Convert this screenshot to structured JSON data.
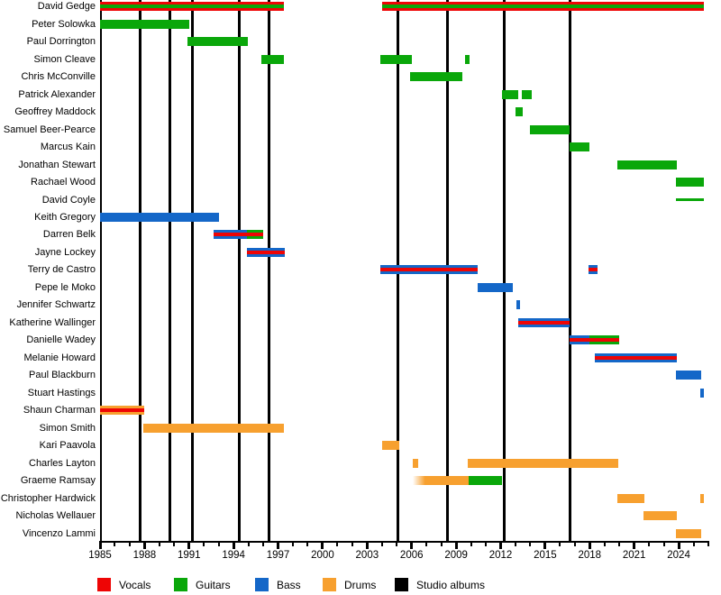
{
  "chart_data": {
    "type": "timeline-gantt",
    "description": "Band members timeline with instrument roles and studio album release markers",
    "x_axis": {
      "min": 1985,
      "max": 2026,
      "major_tick_labels": [
        "1985",
        "1988",
        "1991",
        "1994",
        "1997",
        "2000",
        "2003",
        "2006",
        "2009",
        "2012",
        "2015",
        "2018",
        "2021",
        "2024"
      ],
      "major_ticks": [
        1985,
        1988,
        1991,
        1994,
        1997,
        2000,
        2003,
        2006,
        2009,
        2012,
        2015,
        2018,
        2021,
        2024
      ],
      "minor_tick_interval": 1
    },
    "colors": {
      "vocals": "#ee0505",
      "guitars": "#0aa70a",
      "bass": "#1467c8",
      "drums": "#f7a02f",
      "studio_albums": "#000000"
    },
    "roles": {
      "guitars": {
        "color": "#0aa70a",
        "stripe": null,
        "height": 10
      },
      "guitars_touring": {
        "color": "#0aa70a",
        "stripe": null,
        "height": 3
      },
      "bass": {
        "color": "#1467c8",
        "stripe": null,
        "height": 10
      },
      "drums": {
        "color": "#f7a02f",
        "stripe": null,
        "height": 10
      },
      "drums_fadein": {
        "color": "#f7a02f",
        "stripe": null,
        "height": 10,
        "fade_in": true
      },
      "vocals_guitars": {
        "color": "#ee0505",
        "stripe": "#0aa70a",
        "height": 10
      },
      "bass_vocals": {
        "color": "#1467c8",
        "stripe": "#ee0505",
        "height": 10
      },
      "guitars_vocals": {
        "color": "#0aa70a",
        "stripe": "#ee0505",
        "height": 10
      },
      "drums_vocals": {
        "color": "#f7a02f",
        "stripe": "#ee0505",
        "height": 10
      }
    },
    "members": [
      {
        "name": "David Gedge",
        "segments": [
          {
            "role": "vocals_guitars",
            "start": 1985,
            "end": 1997.4
          },
          {
            "role": "vocals_guitars",
            "start": 2004.0,
            "end": 2025.7
          }
        ]
      },
      {
        "name": "Peter Solowka",
        "segments": [
          {
            "role": "guitars",
            "start": 1985,
            "end": 1991.0
          }
        ]
      },
      {
        "name": "Paul Dorrington",
        "segments": [
          {
            "role": "guitars",
            "start": 1990.9,
            "end": 1994.95
          }
        ]
      },
      {
        "name": "Simon Cleave",
        "segments": [
          {
            "role": "guitars",
            "start": 1995.9,
            "end": 1997.4
          },
          {
            "role": "guitars",
            "start": 2003.9,
            "end": 2006.0
          },
          {
            "role": "guitars",
            "start": 2009.6,
            "end": 2009.9
          }
        ]
      },
      {
        "name": "Chris McConville",
        "segments": [
          {
            "role": "guitars",
            "start": 2005.9,
            "end": 2009.4
          }
        ]
      },
      {
        "name": "Patrick Alexander",
        "segments": [
          {
            "role": "guitars",
            "start": 2012.1,
            "end": 2013.2
          },
          {
            "role": "guitars",
            "start": 2013.4,
            "end": 2014.1
          }
        ]
      },
      {
        "name": "Geoffrey Maddock",
        "segments": [
          {
            "role": "guitars",
            "start": 2013.0,
            "end": 2013.5
          }
        ]
      },
      {
        "name": "Samuel Beer-Pearce",
        "segments": [
          {
            "role": "guitars",
            "start": 2014.0,
            "end": 2016.65
          }
        ]
      },
      {
        "name": "Marcus Kain",
        "segments": [
          {
            "role": "guitars",
            "start": 2016.65,
            "end": 2018.0
          }
        ]
      },
      {
        "name": "Jonathan Stewart",
        "segments": [
          {
            "role": "guitars",
            "start": 2019.85,
            "end": 2023.87
          }
        ]
      },
      {
        "name": "Rachael Wood",
        "segments": [
          {
            "role": "guitars",
            "start": 2023.8,
            "end": 2025.7
          }
        ]
      },
      {
        "name": "David Coyle",
        "segments": [
          {
            "role": "guitars_touring",
            "start": 2023.8,
            "end": 2025.7
          }
        ]
      },
      {
        "name": "Keith Gregory",
        "segments": [
          {
            "role": "bass",
            "start": 1985,
            "end": 1993.0
          }
        ]
      },
      {
        "name": "Darren Belk",
        "segments": [
          {
            "role": "bass_vocals",
            "start": 1992.65,
            "end": 1994.92
          },
          {
            "role": "guitars_vocals",
            "start": 1994.92,
            "end": 1996.0
          }
        ]
      },
      {
        "name": "Jayne Lockey",
        "segments": [
          {
            "role": "bass_vocals",
            "start": 1994.9,
            "end": 1997.45
          }
        ]
      },
      {
        "name": "Terry de Castro",
        "segments": [
          {
            "role": "bass_vocals",
            "start": 2003.9,
            "end": 2010.45
          },
          {
            "role": "bass_vocals",
            "start": 2017.95,
            "end": 2018.5
          }
        ]
      },
      {
        "name": "Pepe le Moko",
        "segments": [
          {
            "role": "bass",
            "start": 2010.45,
            "end": 2012.85
          }
        ]
      },
      {
        "name": "Jennifer Schwartz",
        "segments": [
          {
            "role": "bass",
            "start": 2013.05,
            "end": 2013.3
          }
        ]
      },
      {
        "name": "Katherine Wallinger",
        "segments": [
          {
            "role": "bass_vocals",
            "start": 2013.2,
            "end": 2016.65
          }
        ]
      },
      {
        "name": "Danielle Wadey",
        "segments": [
          {
            "role": "bass_vocals",
            "start": 2016.65,
            "end": 2018.0
          },
          {
            "role": "guitars_vocals",
            "start": 2018.0,
            "end": 2020.0
          }
        ]
      },
      {
        "name": "Melanie Howard",
        "segments": [
          {
            "role": "bass_vocals",
            "start": 2018.35,
            "end": 2023.87
          }
        ]
      },
      {
        "name": "Paul Blackburn",
        "segments": [
          {
            "role": "bass",
            "start": 2023.8,
            "end": 2025.5
          }
        ]
      },
      {
        "name": "Stuart Hastings",
        "segments": [
          {
            "role": "bass",
            "start": 2025.45,
            "end": 2025.7
          }
        ]
      },
      {
        "name": "Shaun Charman",
        "segments": [
          {
            "role": "drums_vocals",
            "start": 1985,
            "end": 1988.0
          }
        ]
      },
      {
        "name": "Simon Smith",
        "segments": [
          {
            "role": "drums",
            "start": 1987.9,
            "end": 1997.4
          }
        ]
      },
      {
        "name": "Kari Paavola",
        "segments": [
          {
            "role": "drums",
            "start": 2004.0,
            "end": 2005.15
          }
        ]
      },
      {
        "name": "Charles Layton",
        "segments": [
          {
            "role": "drums",
            "start": 2006.05,
            "end": 2006.45
          },
          {
            "role": "drums",
            "start": 2009.8,
            "end": 2019.9
          }
        ]
      },
      {
        "name": "Graeme Ramsay",
        "segments": [
          {
            "role": "drums_fadein",
            "start": 2006.1,
            "end": 2009.85
          },
          {
            "role": "guitars",
            "start": 2009.85,
            "end": 2012.1
          }
        ]
      },
      {
        "name": "Christopher Hardwick",
        "segments": [
          {
            "role": "drums",
            "start": 2019.87,
            "end": 2021.7
          },
          {
            "role": "drums",
            "start": 2025.45,
            "end": 2025.7
          }
        ]
      },
      {
        "name": "Nicholas Wellauer",
        "segments": [
          {
            "role": "drums",
            "start": 2021.6,
            "end": 2023.85
          }
        ]
      },
      {
        "name": "Vincenzo Lammi",
        "segments": [
          {
            "role": "drums",
            "start": 2023.8,
            "end": 2025.5
          }
        ]
      }
    ],
    "studio_albums": [
      1987.7,
      1989.7,
      1991.2,
      1994.4,
      1996.4,
      2005.1,
      2008.4,
      2012.25,
      2016.7
    ],
    "legend": [
      {
        "label": "Vocals",
        "color": "#ee0505"
      },
      {
        "label": "Guitars",
        "color": "#0aa70a"
      },
      {
        "label": "Bass",
        "color": "#1467c8"
      },
      {
        "label": "Drums",
        "color": "#f7a02f"
      },
      {
        "label": "Studio albums",
        "color": "#000000"
      }
    ]
  }
}
